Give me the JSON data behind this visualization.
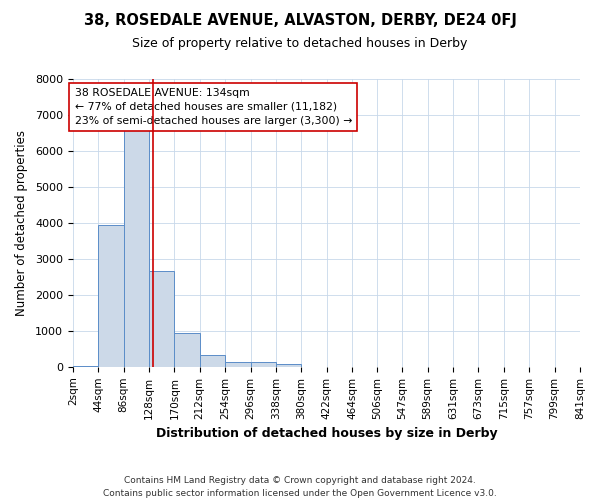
{
  "title": "38, ROSEDALE AVENUE, ALVASTON, DERBY, DE24 0FJ",
  "subtitle": "Size of property relative to detached houses in Derby",
  "xlabel": "Distribution of detached houses by size in Derby",
  "ylabel": "Number of detached properties",
  "footnote1": "Contains HM Land Registry data © Crown copyright and database right 2024.",
  "footnote2": "Contains public sector information licensed under the Open Government Licence v3.0.",
  "annotation_line1": "38 ROSEDALE AVENUE: 134sqm",
  "annotation_line2": "← 77% of detached houses are smaller (11,182)",
  "annotation_line3": "23% of semi-detached houses are larger (3,300) →",
  "property_size": 134,
  "bar_edges": [
    2,
    44,
    86,
    128,
    170,
    212,
    254,
    296,
    338,
    380,
    422,
    464,
    506,
    547,
    589,
    631,
    673,
    715,
    757,
    799,
    841
  ],
  "bar_heights": [
    10,
    3950,
    6600,
    2650,
    950,
    330,
    130,
    130,
    70,
    0,
    0,
    0,
    0,
    0,
    0,
    0,
    0,
    0,
    0,
    0
  ],
  "bar_color": "#ccd9e8",
  "bar_edge_color": "#5b8dc8",
  "red_line_color": "#cc0000",
  "annotation_box_edge_color": "#cc0000",
  "background_color": "#ffffff",
  "grid_color": "#c8d8ea",
  "ylim": [
    0,
    8000
  ],
  "yticks": [
    0,
    1000,
    2000,
    3000,
    4000,
    5000,
    6000,
    7000,
    8000
  ]
}
